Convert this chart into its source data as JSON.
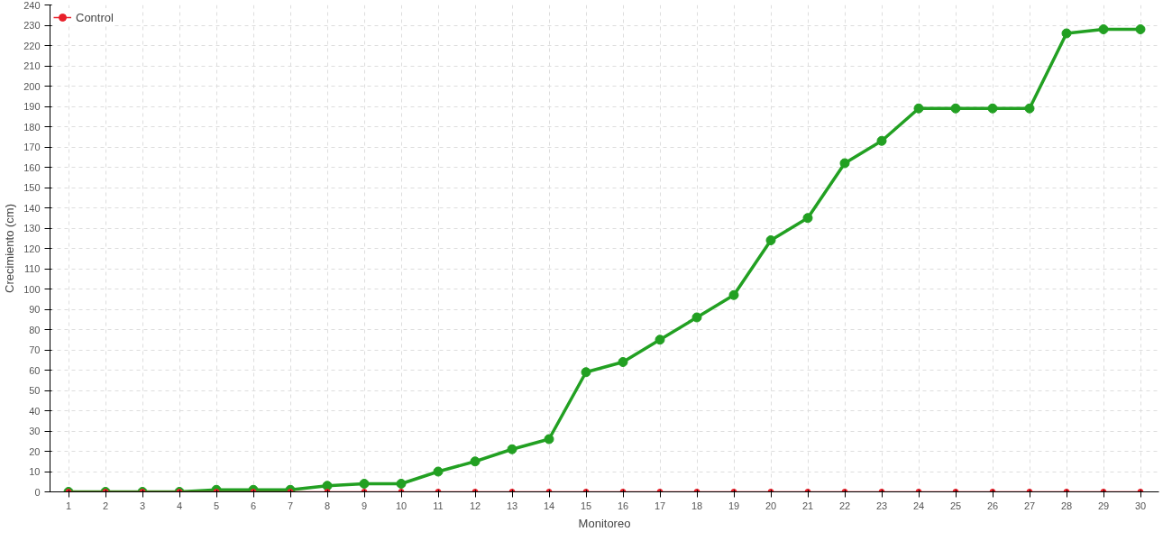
{
  "chart_data": {
    "type": "line",
    "xlabel": "Monitoreo",
    "ylabel": "Crecimiento (cm)",
    "x": [
      1,
      2,
      3,
      4,
      5,
      6,
      7,
      8,
      9,
      10,
      11,
      12,
      13,
      14,
      15,
      16,
      17,
      18,
      19,
      20,
      21,
      22,
      23,
      24,
      25,
      26,
      27,
      28,
      29,
      30
    ],
    "series": [
      {
        "color": "#22a022",
        "values": [
          0,
          0,
          0,
          0,
          1,
          1,
          1,
          3,
          4,
          4,
          10,
          15,
          21,
          26,
          59,
          64,
          75,
          86,
          97,
          124,
          135,
          162,
          173,
          189,
          189,
          189,
          189,
          226,
          228,
          228
        ]
      },
      {
        "name": "Control",
        "color": "#e8202a",
        "values": [
          0,
          0,
          0,
          0,
          0,
          0,
          0,
          0,
          0,
          0,
          0,
          0,
          0,
          0,
          0,
          0,
          0,
          0,
          0,
          0,
          0,
          0,
          0,
          0,
          0,
          0,
          0,
          0,
          0,
          0
        ]
      }
    ],
    "xlim": [
      0.5,
      30.5
    ],
    "xticks": [
      1,
      2,
      3,
      4,
      5,
      6,
      7,
      8,
      9,
      10,
      11,
      12,
      13,
      14,
      15,
      16,
      17,
      18,
      19,
      20,
      21,
      22,
      23,
      24,
      25,
      26,
      27,
      28,
      29,
      30
    ],
    "ylim": [
      0,
      240
    ],
    "yticks": [
      0,
      10,
      20,
      30,
      40,
      50,
      60,
      70,
      80,
      90,
      100,
      110,
      120,
      130,
      140,
      150,
      160,
      170,
      180,
      190,
      200,
      210,
      220,
      230,
      240
    ],
    "grid": true,
    "legend": "top left",
    "marker": "circle",
    "line_style": "solid"
  }
}
